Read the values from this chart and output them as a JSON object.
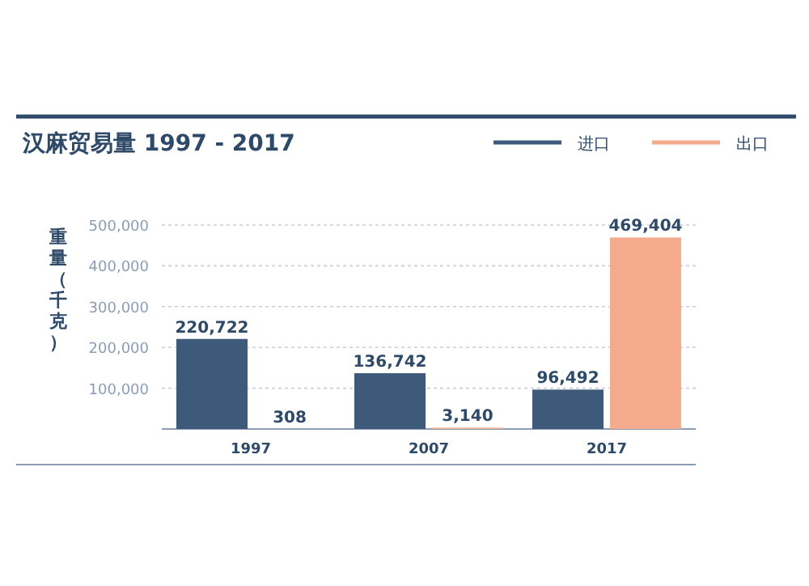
{
  "chart_data": {
    "type": "bar",
    "title": "汉麻贸易量 1997 - 2017",
    "ylabel": "重量（千克）",
    "categories": [
      "1997",
      "2007",
      "2017"
    ],
    "series": [
      {
        "name": "进口",
        "color": "#3d5a7a",
        "values": [
          220722,
          136742,
          96492
        ],
        "value_labels": [
          "220,722",
          "136,742",
          "96,492"
        ]
      },
      {
        "name": "出口",
        "color": "#f4ab8d",
        "values": [
          308,
          3140,
          469404
        ],
        "value_labels": [
          "308",
          "3,140",
          "469,404"
        ]
      }
    ],
    "ylim": [
      0,
      500000
    ],
    "yticks": [
      {
        "value": 100000,
        "label": "100,000"
      },
      {
        "value": 200000,
        "label": "200,000"
      },
      {
        "value": 300000,
        "label": "300,000"
      },
      {
        "value": 400000,
        "label": "400,000"
      },
      {
        "value": 500000,
        "label": "500,000"
      }
    ],
    "grid": "y",
    "legend": "top right"
  }
}
